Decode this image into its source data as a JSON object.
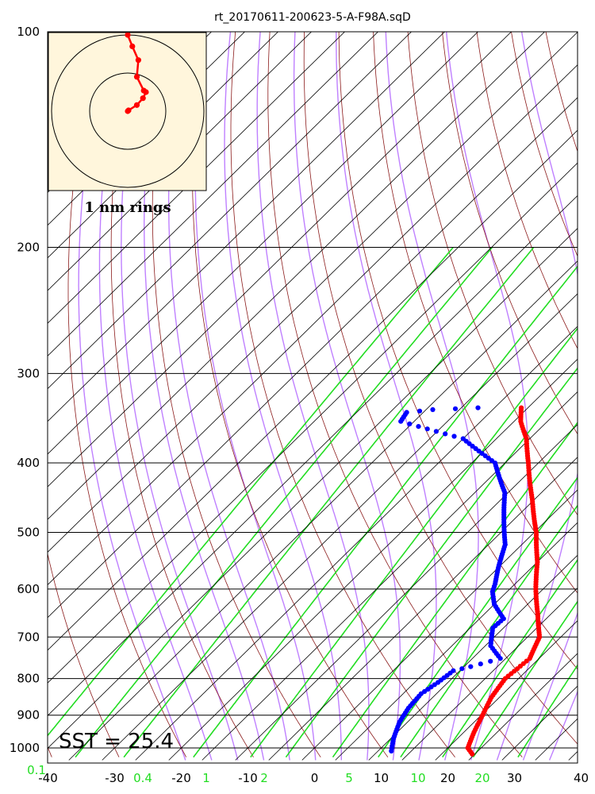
{
  "title": "rt_20170611-200623-5-A-F98A.sqD",
  "sst_label": "SST = 25.4",
  "hodograph_label": "1 nm rings",
  "colors": {
    "temperature": "#ff0000",
    "dewpoint": "#0000ff",
    "isotherm": "#000000",
    "dry_adiabat": "#8b1a1a",
    "moist_adiabat": "#bf80ff",
    "mixing_ratio": "#22dd22",
    "hodo_bg": "#fff6dc"
  },
  "chart_data": {
    "type": "skew-t",
    "pressure_ticks": [
      "100",
      "200",
      "300",
      "400",
      "500",
      "600",
      "700",
      "800",
      "900",
      "1000"
    ],
    "temperature_ticks": [
      "-40",
      "-30",
      "-20",
      "-10",
      "0",
      "10",
      "20",
      "30",
      "40"
    ],
    "mixing_ratio_ticks": [
      "0.1",
      "0.4",
      "1",
      "2",
      "5",
      "10",
      "20"
    ],
    "temperature_profile": [
      [
        1020,
        24.6
      ],
      [
        1000,
        23.0
      ],
      [
        950,
        21.5
      ],
      [
        900,
        20.2
      ],
      [
        850,
        18.8
      ],
      [
        800,
        18.0
      ],
      [
        750,
        18.6
      ],
      [
        700,
        16.8
      ],
      [
        650,
        13.0
      ],
      [
        600,
        8.9
      ],
      [
        550,
        5.0
      ],
      [
        500,
        0.3
      ],
      [
        450,
        -5.3
      ],
      [
        400,
        -11.5
      ],
      [
        370,
        -15.5
      ],
      [
        350,
        -19.0
      ],
      [
        335,
        -21.0
      ]
    ],
    "dewpoint_profile": [
      [
        1010,
        12.0
      ],
      [
        970,
        10.4
      ],
      [
        920,
        8.8
      ],
      [
        880,
        8.0
      ],
      [
        840,
        7.7
      ],
      [
        810,
        8.5
      ],
      [
        780,
        9.0
      ],
      [
        770,
        11.0
      ],
      [
        750,
        14.2
      ],
      [
        720,
        10.8
      ],
      [
        680,
        8.4
      ],
      [
        660,
        8.6
      ],
      [
        630,
        5.0
      ],
      [
        605,
        2.8
      ],
      [
        590,
        2.0
      ],
      [
        560,
        0.0
      ],
      [
        520,
        -2.5
      ],
      [
        480,
        -6.5
      ],
      [
        440,
        -10.5
      ],
      [
        400,
        -16.5
      ],
      [
        370,
        -25.0
      ],
      [
        350,
        -37.0
      ],
      [
        340,
        -37.5
      ],
      [
        337,
        -34.0
      ],
      [
        335,
        -27.5
      ]
    ],
    "hodograph": [
      [
        0.0,
        1.0
      ],
      [
        0.06,
        0.85
      ],
      [
        0.14,
        0.67
      ],
      [
        0.12,
        0.45
      ],
      [
        0.21,
        0.27
      ],
      [
        0.24,
        0.25
      ],
      [
        0.2,
        0.17
      ],
      [
        0.12,
        0.08
      ],
      [
        0.01,
        0.01
      ],
      [
        0.0,
        0.0
      ]
    ]
  }
}
